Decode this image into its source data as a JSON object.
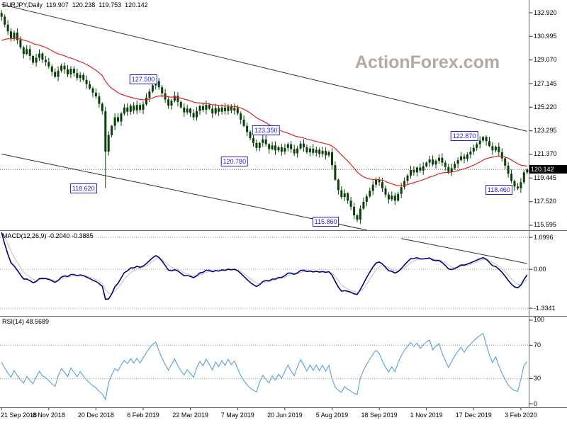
{
  "header": {
    "symbol": "EURJPY,Daily",
    "open": "119.907",
    "high": "120.238",
    "low": "119.753",
    "close": "120.142"
  },
  "watermark": "ActionForex.com",
  "colors": {
    "candle": "#084008",
    "ma": "#e02020",
    "macd_main": "#00007e",
    "macd_signal": "#bfbfbf",
    "rsi": "#57a0d8",
    "label_blue": "#2222cc",
    "trendline": "#2f2f2f",
    "watermark": "#b3aba3",
    "current_price_bg": "#000000",
    "current_price_line": "#666666",
    "dotted_level": "#999999"
  },
  "chart_data": [
    {
      "type": "candlestick",
      "title": "EURJPY,Daily",
      "x_labels": [
        "21 Sep 2018",
        "6 Nov 2018",
        "20 Dec 2018",
        "6 Feb 2019",
        "22 Mar 2019",
        "7 May 2019",
        "20 Jun 2019",
        "5 Aug 2019",
        "18 Sep 2019",
        "1 Nov 2019",
        "17 Dec 2019",
        "3 Feb 2020"
      ],
      "x_label_indices": [
        0,
        15,
        30,
        45,
        60,
        75,
        90,
        105,
        120,
        135,
        150,
        165
      ],
      "first_open": 132.9,
      "closes": [
        132.6,
        131.95,
        131.4,
        130.85,
        131.3,
        130.7,
        130.1,
        129.55,
        129.95,
        129.4,
        128.85,
        129.25,
        129.6,
        129.1,
        128.9,
        128.55,
        128.1,
        127.7,
        128.2,
        128.6,
        128.3,
        127.9,
        128.35,
        128.0,
        127.6,
        127.85,
        127.45,
        127.1,
        126.75,
        126.4,
        126.1,
        125.5,
        124.9,
        121.6,
        122.95,
        123.7,
        124.4,
        124.05,
        124.7,
        125.2,
        124.85,
        125.35,
        124.95,
        125.4,
        125.0,
        125.45,
        126.0,
        126.5,
        127.0,
        127.35,
        126.85,
        126.35,
        125.85,
        125.35,
        125.75,
        126.15,
        125.65,
        125.2,
        124.8,
        125.1,
        124.75,
        124.4,
        124.9,
        125.3,
        125.0,
        125.4,
        125.1,
        124.7,
        125.15,
        124.85,
        125.2,
        124.9,
        125.25,
        124.95,
        125.15,
        124.7,
        124.2,
        123.7,
        123.2,
        122.7,
        122.3,
        121.9,
        122.3,
        122.6,
        122.2,
        121.8,
        122.1,
        121.7,
        121.95,
        121.6,
        121.9,
        122.2,
        121.8,
        121.45,
        121.85,
        122.25,
        121.95,
        121.55,
        121.85,
        121.5,
        121.75,
        121.4,
        121.65,
        121.3,
        121.55,
        120.5,
        119.3,
        118.45,
        117.9,
        118.2,
        117.6,
        117.1,
        116.4,
        116.05,
        116.95,
        117.5,
        117.95,
        118.4,
        118.9,
        119.3,
        119.1,
        118.6,
        118.1,
        117.7,
        118.0,
        117.6,
        118.15,
        118.7,
        119.2,
        119.65,
        120.1,
        119.9,
        120.3,
        120.05,
        120.4,
        120.7,
        120.95,
        120.55,
        120.85,
        121.1,
        120.7,
        120.35,
        119.95,
        120.25,
        120.6,
        120.9,
        121.2,
        121.0,
        121.35,
        121.6,
        121.9,
        122.2,
        122.5,
        122.8,
        122.45,
        122.05,
        121.7,
        122.0,
        121.55,
        121.05,
        120.45,
        119.8,
        119.2,
        118.75,
        118.6,
        119.1,
        119.9,
        120.142
      ],
      "special_candles": [
        {
          "index": 33,
          "low": 118.62
        },
        {
          "index": 113,
          "low": 115.86
        },
        {
          "index": 153,
          "high": 122.87
        },
        {
          "index": 164,
          "low": 118.46
        },
        {
          "index": 167,
          "open": 119.907,
          "high": 120.238,
          "low": 119.753,
          "close": 120.142
        }
      ],
      "ma_line": {
        "name": "EMA",
        "render_period": 26,
        "seed": 130.5
      },
      "y_ticks": [
        "132.920",
        "130.995",
        "129.070",
        "127.145",
        "125.220",
        "123.295",
        "121.370",
        "119.445",
        "117.520",
        "115.595"
      ],
      "y_top_value": 133.96,
      "y_bottom_value": 115.19,
      "current_price": 120.142,
      "current_price_text": "120.142",
      "price_labels": [
        {
          "text": "127.500",
          "index": 45,
          "price": 127.5
        },
        {
          "text": "123.350",
          "index": 84,
          "price": 123.35
        },
        {
          "text": "120.780",
          "index": 74,
          "price": 120.78
        },
        {
          "text": "118.620",
          "index": 26,
          "price": 118.62
        },
        {
          "text": "115.860",
          "index": 103,
          "price": 115.86
        },
        {
          "text": "122.870",
          "index": 147,
          "price": 122.87
        },
        {
          "text": "118.460",
          "index": 158,
          "price": 118.46
        }
      ],
      "trendlines": [
        {
          "from_index": 0,
          "from_price": 133.6,
          "to_index": 167,
          "to_price": 123.25
        },
        {
          "from_index": 0,
          "from_price": 121.4,
          "to_index": 116,
          "to_price": 115.2
        }
      ]
    },
    {
      "type": "line",
      "name": "MACD",
      "label": "MACD(12,26,9) -0.2040 -0.3885",
      "render_params": {
        "fast": 5,
        "slow": 9,
        "signal": 4,
        "fast_seed_offset": 0.7,
        "slow_seed_offset": -1.0
      },
      "y_ticks": [
        "1.0996",
        "0.00",
        "-1.3341"
      ],
      "y_top_value": 1.32,
      "y_bottom_value": -1.6,
      "trendline": {
        "from_index": 127,
        "from_value": 1.06,
        "to_index": 167,
        "to_value": 0.2
      }
    },
    {
      "type": "line",
      "name": "RSI",
      "label": "RSI(14) 48.5689",
      "render_period": 7,
      "levels": [
        70,
        30
      ],
      "y_ticks": [
        "100",
        "70",
        "30",
        "0"
      ],
      "y_top_value": 104.2,
      "y_bottom_value": -4.2
    }
  ]
}
